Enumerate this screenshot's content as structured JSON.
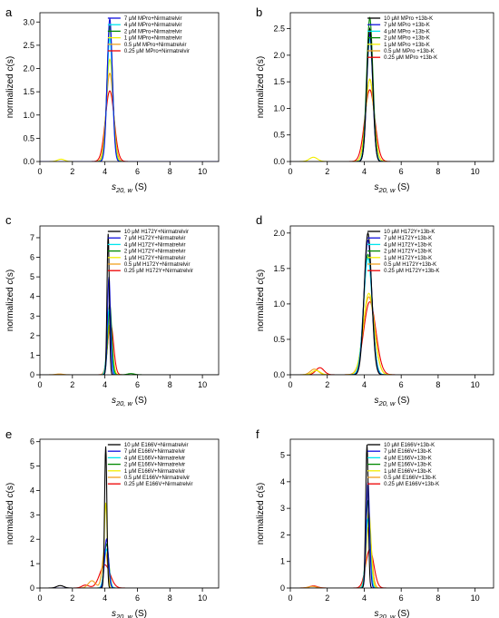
{
  "colors": {
    "10": "#000000",
    "7": "#1010dd",
    "4": "#00e5ee",
    "2": "#008800",
    "1": "#f2ee00",
    "0.5": "#f0a020",
    "0.25": "#ee0000"
  },
  "chart_data": [
    {
      "panel": "a",
      "type": "line",
      "xlabel_main": "s",
      "xlabel_sub": "20, w",
      "xlabel_unit": " (S)",
      "ylabel_pre": "normalized ",
      "ylabel_italic": "c",
      "ylabel_post": "(s)",
      "xlim": [
        0,
        11
      ],
      "ylim": [
        0,
        3.2
      ],
      "xticks": [
        0,
        2,
        4,
        6,
        8,
        10
      ],
      "yticks": [
        0,
        0.5,
        1.0,
        1.5,
        2.0,
        2.5,
        3.0
      ],
      "ytick_labels": [
        "0.0",
        "0.5",
        "1.0",
        "1.5",
        "2.0",
        "2.5",
        "3.0"
      ],
      "series": [
        {
          "key": "7",
          "name": "7 μM MPro+Nirmatrelvir",
          "peak": 4.3,
          "height": 3.07,
          "width": 0.16
        },
        {
          "key": "4",
          "name": "4 μM MPro+Nirmatrelvir",
          "peak": 4.3,
          "height": 2.65,
          "width": 0.17
        },
        {
          "key": "2",
          "name": "2 μM MPro+Nirmatrelvir",
          "peak": 4.3,
          "height": 2.9,
          "width": 0.17
        },
        {
          "key": "1",
          "name": "1 μM MPro+Nirmatrelvir",
          "peak": 4.3,
          "height": 2.2,
          "width": 0.2,
          "minor_peak": 1.3,
          "minor_height": 0.05
        },
        {
          "key": "0.5",
          "name": "0.5 μM MPro+Nirmatrelvir",
          "peak": 4.3,
          "height": 1.9,
          "width": 0.22
        },
        {
          "key": "0.25",
          "name": "0.25 μM MPro+Nirmatrelvir",
          "peak": 4.3,
          "height": 1.52,
          "width": 0.27
        }
      ]
    },
    {
      "panel": "b",
      "type": "line",
      "xlabel_main": "s",
      "xlabel_sub": "20, w",
      "xlabel_unit": " (S)",
      "ylabel_pre": "normalized ",
      "ylabel_italic": "c",
      "ylabel_post": "(s)",
      "xlim": [
        0,
        11
      ],
      "ylim": [
        0,
        2.8
      ],
      "xticks": [
        0,
        2,
        4,
        6,
        8,
        10
      ],
      "yticks": [
        0,
        0.5,
        1.0,
        1.5,
        2.0,
        2.5
      ],
      "ytick_labels": [
        "0.0",
        "0.5",
        "1.0",
        "1.5",
        "2.0",
        "2.5"
      ],
      "series": [
        {
          "key": "10",
          "name": "10 μM MPro +13b-K",
          "peak": 4.3,
          "height": 2.5,
          "width": 0.16
        },
        {
          "key": "7",
          "name": "7 μM MPro +13b-K",
          "peak": 4.3,
          "height": 2.4,
          "width": 0.16
        },
        {
          "key": "4",
          "name": "4 μM MPro +13b-K",
          "peak": 4.3,
          "height": 2.3,
          "width": 0.17
        },
        {
          "key": "2",
          "name": "2 μM MPro +13b-K",
          "peak": 4.3,
          "height": 2.7,
          "width": 0.17
        },
        {
          "key": "1",
          "name": "1 μM MPro +13b-K",
          "peak": 4.3,
          "height": 1.55,
          "width": 0.22,
          "minor_peak": 1.25,
          "minor_height": 0.08
        },
        {
          "key": "0.5",
          "name": "0.5 μM MPro +13b-K",
          "peak": 4.3,
          "height": 1.55,
          "width": 0.22
        },
        {
          "key": "0.25",
          "name": "0.25 μM MPro +13b-K",
          "peak": 4.3,
          "height": 1.35,
          "width": 0.27
        }
      ]
    },
    {
      "panel": "c",
      "type": "line",
      "xlabel_main": "s",
      "xlabel_sub": "20, w",
      "xlabel_unit": " (S)",
      "ylabel_pre": "normalized ",
      "ylabel_italic": "c",
      "ylabel_post": "(s)",
      "xlim": [
        0,
        11
      ],
      "ylim": [
        0,
        7.6
      ],
      "xticks": [
        0,
        2,
        4,
        6,
        8,
        10
      ],
      "yticks": [
        0,
        1,
        2,
        3,
        4,
        5,
        6,
        7
      ],
      "ytick_labels": [
        "0",
        "1",
        "2",
        "3",
        "4",
        "5",
        "6",
        "7"
      ],
      "series": [
        {
          "key": "10",
          "name": "10 μM H172Y+Nirmatrelvir",
          "peak": 4.2,
          "height": 7.2,
          "width": 0.07
        },
        {
          "key": "7",
          "name": "7 μM H172Y+Nirmatrelvir",
          "peak": 4.25,
          "height": 5.0,
          "width": 0.09
        },
        {
          "key": "4",
          "name": "4 μM H172Y+Nirmatrelvir",
          "peak": 4.25,
          "height": 3.3,
          "width": 0.12
        },
        {
          "key": "2",
          "name": "2 μM H172Y+Nirmatrelvir",
          "peak": 4.3,
          "height": 3.6,
          "width": 0.12,
          "minor_peak": 5.6,
          "minor_height": 0.06
        },
        {
          "key": "1",
          "name": "1 μM H172Y+Nirmatrelvir",
          "peak": 4.3,
          "height": 2.55,
          "width": 0.15
        },
        {
          "key": "0.5",
          "name": "0.5 μM H172Y+Nirmatrelvir",
          "peak": 4.3,
          "height": 2.45,
          "width": 0.15,
          "minor_peak": 1.2,
          "minor_height": 0.04
        },
        {
          "key": "0.25",
          "name": "0.25 μM H172Y+Nirmatrelvir",
          "peak": 4.35,
          "height": 2.6,
          "width": 0.18
        }
      ]
    },
    {
      "panel": "d",
      "type": "line",
      "xlabel_main": "s",
      "xlabel_sub": "20, w",
      "xlabel_unit": " (S)",
      "ylabel_pre": "normalized ",
      "ylabel_italic": "c",
      "ylabel_post": "(s)",
      "xlim": [
        0,
        11
      ],
      "ylim": [
        0,
        2.1
      ],
      "xticks": [
        0,
        2,
        4,
        6,
        8,
        10
      ],
      "yticks": [
        0,
        0.5,
        1.0,
        1.5,
        2.0
      ],
      "ytick_labels": [
        "0.0",
        "0.5",
        "1.0",
        "1.5",
        "2.0"
      ],
      "series": [
        {
          "key": "10",
          "name": "10 μM H172Y+13b-K",
          "peak": 4.2,
          "height": 2.0,
          "width": 0.2
        },
        {
          "key": "7",
          "name": "7 μM H172Y+13b-K",
          "peak": 4.2,
          "height": 1.9,
          "width": 0.21
        },
        {
          "key": "4",
          "name": "4 μM H172Y+13b-K",
          "peak": 4.2,
          "height": 1.65,
          "width": 0.23
        },
        {
          "key": "2",
          "name": "2 μM H172Y+13b-K",
          "peak": 4.2,
          "height": 1.7,
          "width": 0.23
        },
        {
          "key": "1",
          "name": "1 μM H172Y+13b-K",
          "peak": 4.25,
          "height": 1.15,
          "width": 0.3,
          "minor_peak": 1.4,
          "minor_height": 0.06
        },
        {
          "key": "0.5",
          "name": "0.5 μM H172Y+13b-K",
          "peak": 4.25,
          "height": 1.1,
          "width": 0.3,
          "minor_peak": 1.3,
          "minor_height": 0.08
        },
        {
          "key": "0.25",
          "name": "0.25 μM H172Y+13b-K",
          "peak": 4.3,
          "height": 1.03,
          "width": 0.33,
          "minor_peak": 1.6,
          "minor_height": 0.1
        }
      ]
    },
    {
      "panel": "e",
      "type": "line",
      "xlabel_main": "s",
      "xlabel_sub": "20, w",
      "xlabel_unit": " (S)",
      "ylabel_pre": "normalized ",
      "ylabel_italic": "c",
      "ylabel_post": "(s)",
      "xlim": [
        0,
        11
      ],
      "ylim": [
        0,
        6.1
      ],
      "xticks": [
        0,
        2,
        4,
        6,
        8,
        10
      ],
      "yticks": [
        0,
        1,
        2,
        3,
        4,
        5,
        6
      ],
      "ytick_labels": [
        "0",
        "1",
        "2",
        "3",
        "4",
        "5",
        "6"
      ],
      "series": [
        {
          "key": "10",
          "name": "10 μM E166V+Nirmatrelvir",
          "peak": 4.05,
          "height": 5.8,
          "width": 0.07,
          "minor_peak": 1.25,
          "minor_height": 0.1
        },
        {
          "key": "7",
          "name": "7 μM E166V+Nirmatrelvir",
          "peak": 4.1,
          "height": 2.0,
          "width": 0.12
        },
        {
          "key": "4",
          "name": "4 μM E166V+Nirmatrelvir",
          "peak": 4.1,
          "height": 1.6,
          "width": 0.14
        },
        {
          "key": "2",
          "name": "2 μM E166V+Nirmatrelvir",
          "peak": 4.1,
          "height": 1.8,
          "width": 0.14
        },
        {
          "key": "1",
          "name": "1 μM E166V+Nirmatrelvir",
          "peak": 4.05,
          "height": 3.5,
          "width": 0.09
        },
        {
          "key": "0.5",
          "name": "0.5 μM E166V+Nirmatrelvir",
          "peak": 4.0,
          "height": 1.6,
          "width": 0.16,
          "minor_peak": 3.2,
          "minor_height": 0.3
        },
        {
          "key": "0.25",
          "name": "0.25 μM E166V+Nirmatrelvir",
          "peak": 4.0,
          "height": 0.95,
          "width": 0.32,
          "minor_peak": 2.8,
          "minor_height": 0.12
        }
      ]
    },
    {
      "panel": "f",
      "type": "line",
      "xlabel_main": "s",
      "xlabel_sub": "20, w",
      "xlabel_unit": " (S)",
      "ylabel_pre": "normalized ",
      "ylabel_italic": "c",
      "ylabel_post": "(s)",
      "xlim": [
        0,
        11
      ],
      "ylim": [
        0,
        5.6
      ],
      "xticks": [
        0,
        2,
        4,
        6,
        8,
        10
      ],
      "yticks": [
        0,
        1,
        2,
        3,
        4,
        5
      ],
      "ytick_labels": [
        "0",
        "1",
        "2",
        "3",
        "4",
        "5"
      ],
      "series": [
        {
          "key": "10",
          "name": "10 μM E166V+13b-K",
          "peak": 4.15,
          "height": 5.4,
          "width": 0.07
        },
        {
          "key": "7",
          "name": "7 μM E166V+13b-K",
          "peak": 4.2,
          "height": 4.0,
          "width": 0.09
        },
        {
          "key": "4",
          "name": "4 μM E166V+13b-K",
          "peak": 4.2,
          "height": 2.6,
          "width": 0.12
        },
        {
          "key": "2",
          "name": "2 μM E166V+13b-K",
          "peak": 4.2,
          "height": 3.3,
          "width": 0.11
        },
        {
          "key": "1",
          "name": "1 μM E166V+13b-K",
          "peak": 4.25,
          "height": 2.9,
          "width": 0.12
        },
        {
          "key": "0.5",
          "name": "0.5 μM E166V+13b-K",
          "peak": 4.25,
          "height": 2.3,
          "width": 0.15,
          "minor_peak": 1.2,
          "minor_height": 0.06
        },
        {
          "key": "0.25",
          "name": "0.25 μM E166V+13b-K",
          "peak": 4.3,
          "height": 1.45,
          "width": 0.22,
          "minor_peak": 1.25,
          "minor_height": 0.08
        }
      ]
    }
  ]
}
